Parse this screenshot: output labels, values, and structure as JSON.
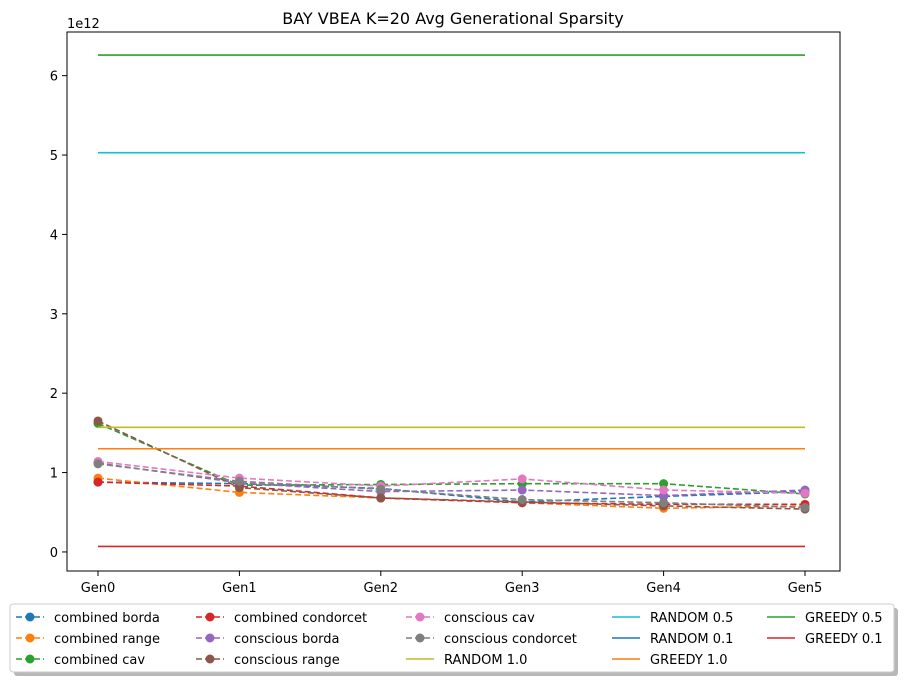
{
  "chart_data": {
    "type": "line",
    "title": "BAY VBEA K=20 Avg Generational Sparsity",
    "xlabel": "",
    "ylabel": "",
    "y_offset_label": "1e12",
    "categories": [
      "Gen0",
      "Gen1",
      "Gen2",
      "Gen3",
      "Gen4",
      "Gen5"
    ],
    "y_ticks": [
      0,
      1,
      2,
      3,
      4,
      5,
      6
    ],
    "y_tick_labels": [
      "0",
      "1",
      "2",
      "3",
      "4",
      "5",
      "6"
    ],
    "ylim": [
      -0.24,
      6.55
    ],
    "grid": false,
    "legend_position": "bottom-center",
    "series": [
      {
        "name": "combined borda",
        "color": "#1f77b4",
        "style": "dashed-marker",
        "values": [
          0.88,
          0.86,
          0.8,
          0.63,
          0.7,
          0.76
        ]
      },
      {
        "name": "combined range",
        "color": "#ff7f0e",
        "style": "dashed-marker",
        "values": [
          0.93,
          0.75,
          0.68,
          0.62,
          0.55,
          0.58
        ]
      },
      {
        "name": "combined cav",
        "color": "#2ca02c",
        "style": "dashed-marker",
        "values": [
          1.62,
          0.84,
          0.85,
          0.86,
          0.86,
          0.73
        ]
      },
      {
        "name": "combined condorcet",
        "color": "#d62728",
        "style": "dashed-marker",
        "values": [
          0.88,
          0.83,
          0.68,
          0.62,
          0.6,
          0.6
        ]
      },
      {
        "name": "conscious borda",
        "color": "#9467bd",
        "style": "dashed-marker",
        "values": [
          1.12,
          0.87,
          0.76,
          0.78,
          0.71,
          0.78
        ]
      },
      {
        "name": "conscious range",
        "color": "#8c564b",
        "style": "dashed-marker",
        "values": [
          1.65,
          0.81,
          0.68,
          0.63,
          0.58,
          0.54
        ]
      },
      {
        "name": "conscious cav",
        "color": "#e377c2",
        "style": "dashed-marker",
        "values": [
          1.14,
          0.93,
          0.83,
          0.92,
          0.78,
          0.74
        ]
      },
      {
        "name": "conscious condorcet",
        "color": "#7f7f7f",
        "style": "dashed-marker",
        "values": [
          1.11,
          0.89,
          0.79,
          0.66,
          0.62,
          0.56
        ]
      },
      {
        "name": "RANDOM 1.0",
        "color": "#bcbd22",
        "style": "solid",
        "values": [
          1.57,
          1.57,
          1.57,
          1.57,
          1.57,
          1.57
        ]
      },
      {
        "name": "RANDOM 0.5",
        "color": "#17becf",
        "style": "solid",
        "values": [
          5.03,
          5.03,
          5.03,
          5.03,
          5.03,
          5.03
        ]
      },
      {
        "name": "RANDOM 0.1",
        "color": "#1f77b4",
        "style": "solid",
        "values": [
          0.0,
          0.0,
          0.0,
          0.0,
          0.0,
          0.0
        ],
        "hidden": true
      },
      {
        "name": "GREEDY 1.0",
        "color": "#ff7f0e",
        "style": "solid",
        "values": [
          1.3,
          1.3,
          1.3,
          1.3,
          1.3,
          1.3
        ]
      },
      {
        "name": "GREEDY 0.5",
        "color": "#2ca02c",
        "style": "solid",
        "values": [
          6.26,
          6.26,
          6.26,
          6.26,
          6.26,
          6.26
        ]
      },
      {
        "name": "GREEDY 0.1",
        "color": "#d62728",
        "style": "solid",
        "values": [
          0.07,
          0.07,
          0.07,
          0.07,
          0.07,
          0.07
        ]
      }
    ]
  }
}
